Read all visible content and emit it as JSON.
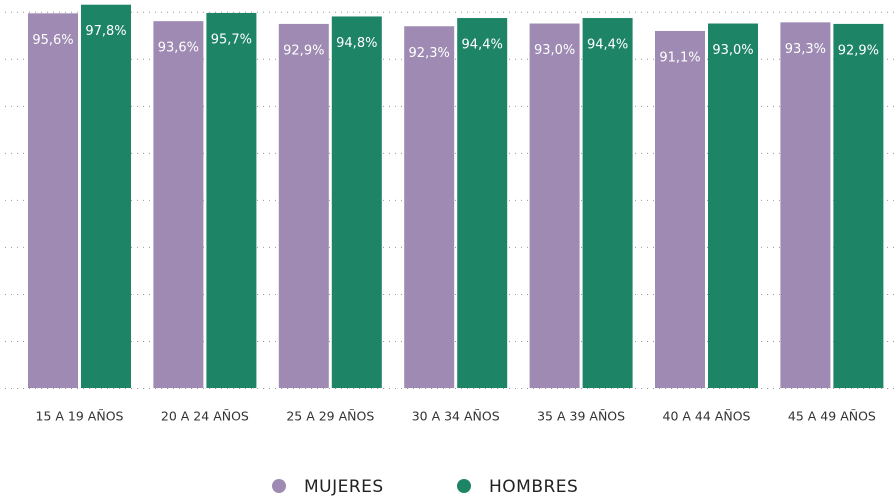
{
  "chart_data": {
    "type": "bar",
    "categories": [
      "15 A 19 AÑOS",
      "20 A 24 AÑOS",
      "25 A 29 AÑOS",
      "30 A 34 AÑOS",
      "35 A 39 AÑOS",
      "40 A 44 AÑOS",
      "45 A 49 AÑOS"
    ],
    "series": [
      {
        "name": "MUJERES",
        "color": "#9e8ab2",
        "values": [
          95.6,
          93.6,
          92.9,
          92.3,
          93.0,
          91.1,
          93.3
        ],
        "value_labels": [
          "95,6%",
          "93,6%",
          "92,9%",
          "92,3%",
          "93,0%",
          "91,1%",
          "93,3%"
        ]
      },
      {
        "name": "HOMBRES",
        "color": "#1e8466",
        "values": [
          97.8,
          95.7,
          94.8,
          94.4,
          94.4,
          93.0,
          92.9
        ],
        "value_labels": [
          "97,8%",
          "95,7%",
          "94,8%",
          "94,4%",
          "94,4%",
          "93,0%",
          "92,9%"
        ]
      }
    ],
    "ylim": [
      0,
      99
    ],
    "yticks": [
      0,
      12,
      24,
      36,
      48,
      60,
      72,
      84,
      96
    ],
    "grid": true,
    "legend": "bottom"
  }
}
